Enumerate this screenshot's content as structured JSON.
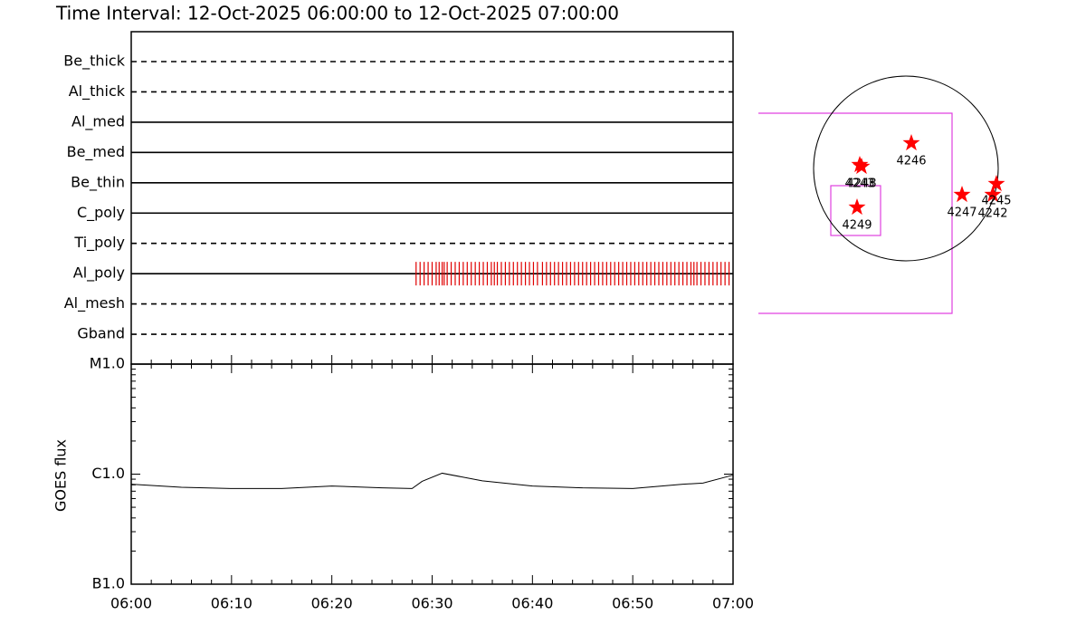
{
  "chart_data": [
    {
      "type": "timeline",
      "title": "Time Interval: 12-Oct-2025 06:00:00 to 12-Oct-2025 07:00:00",
      "categories": [
        "Be_thick",
        "Al_thick",
        "Al_med",
        "Be_med",
        "Be_thin",
        "C_poly",
        "Ti_poly",
        "Al_poly",
        "Al_mesh",
        "Gband"
      ],
      "line_styles": [
        "dashed",
        "dashed",
        "solid",
        "solid",
        "solid",
        "solid",
        "dashed",
        "solid",
        "dashed",
        "dashed"
      ],
      "observations": [
        {
          "filter": "Al_poly",
          "color": "#e00000",
          "x": [
            28.4,
            28.8,
            29.2,
            29.6,
            30.0,
            30.4,
            30.7,
            31.0,
            31.2,
            31.5,
            31.9,
            32.3,
            32.7,
            33.1,
            33.5,
            33.9,
            34.3,
            34.7,
            35.1,
            35.5,
            35.9,
            36.2,
            36.5,
            36.9,
            37.3,
            37.7,
            38.1,
            38.5,
            38.9,
            39.3,
            39.7,
            40.1,
            40.5,
            41.0,
            41.4,
            41.8,
            42.2,
            42.6,
            43.0,
            43.4,
            43.8,
            44.2,
            44.6,
            45.0,
            45.4,
            45.8,
            46.2,
            46.6,
            47.0,
            47.4,
            47.8,
            48.2,
            48.6,
            49.0,
            49.4,
            49.8,
            50.2,
            50.6,
            51.0,
            51.4,
            51.8,
            52.2,
            52.6,
            53.0,
            53.4,
            53.8,
            54.2,
            54.6,
            55.0,
            55.4,
            55.8,
            56.1,
            56.4,
            56.8,
            57.2,
            57.6,
            58.0,
            58.4,
            58.8,
            59.2,
            59.6
          ]
        }
      ],
      "xlim": [
        0,
        60
      ]
    },
    {
      "type": "line",
      "y_label": "GOES flux",
      "log_scale": true,
      "color": "#000000",
      "x": [
        0,
        5,
        10,
        15,
        20,
        25,
        28,
        29,
        31,
        35,
        40,
        45,
        50,
        55,
        57,
        60
      ],
      "values": [
        8.1e-07,
        7.6e-07,
        7.4e-07,
        7.4e-07,
        7.8e-07,
        7.5e-07,
        7.4e-07,
        8.6e-07,
        1.02e-06,
        8.7e-07,
        7.8e-07,
        7.5e-07,
        7.4e-07,
        8.1e-07,
        8.3e-07,
        9.8e-07
      ],
      "xlim": [
        0,
        60
      ],
      "xticks": [
        {
          "value": 0,
          "label": "06:00"
        },
        {
          "value": 10,
          "label": "06:10"
        },
        {
          "value": 20,
          "label": "06:20"
        },
        {
          "value": 30,
          "label": "06:30"
        },
        {
          "value": 40,
          "label": "06:40"
        },
        {
          "value": 50,
          "label": "06:50"
        },
        {
          "value": 60,
          "label": "07:00"
        }
      ],
      "ylim": [
        1e-07,
        1e-05
      ],
      "yticks": [
        {
          "value": 1e-07,
          "label": "B1.0"
        },
        {
          "value": 1e-06,
          "label": "C1.0"
        },
        {
          "value": 1e-05,
          "label": "M1.0"
        }
      ]
    }
  ],
  "sun_map": {
    "regions": [
      "4243",
      "4248",
      "4246",
      "4249",
      "4247",
      "4242",
      "4245"
    ],
    "color": "#ff0000"
  }
}
